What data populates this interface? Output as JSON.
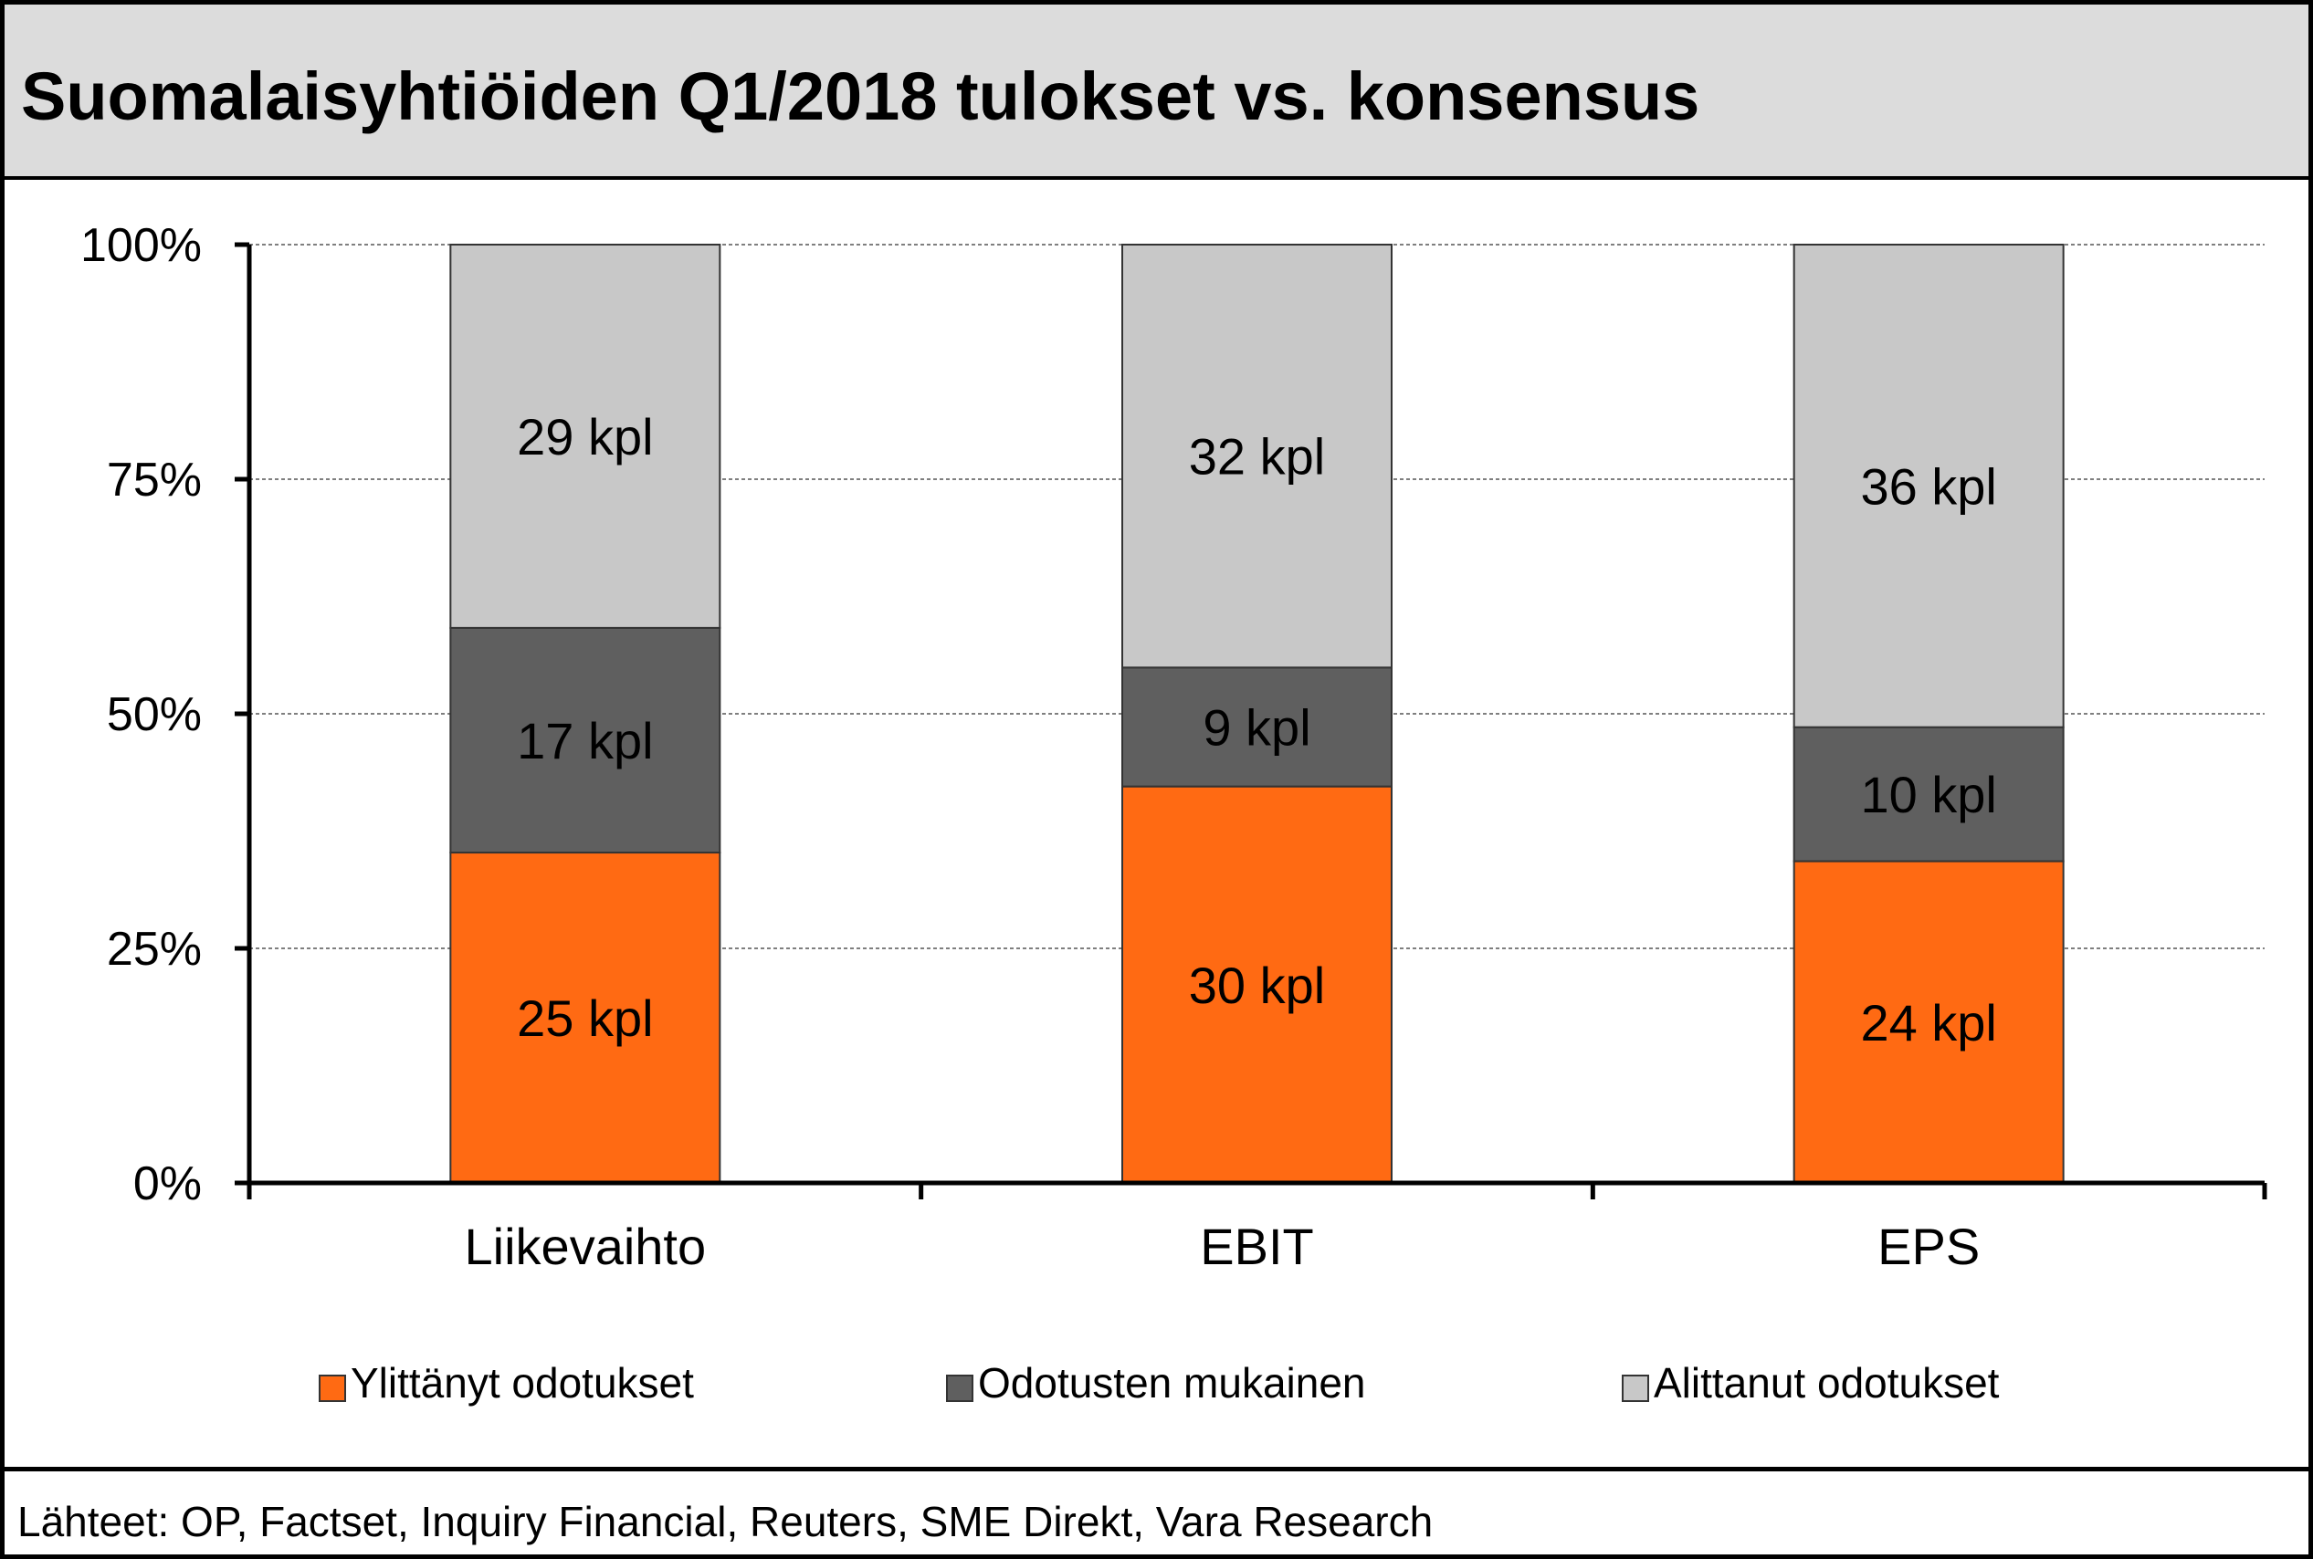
{
  "title": "Suomalaisyhtiöiden Q1/2018 tulokset vs. konsensus",
  "source": "Lähteet: OP, Factset, Inquiry Financial, Reuters, SME Direkt, Vara Research",
  "chart_data": {
    "type": "bar",
    "stacked": true,
    "percent_stacked": true,
    "categories": [
      "Liikevaihto",
      "EBIT",
      "EPS"
    ],
    "series": [
      {
        "name": "Ylittänyt odotukset",
        "values": [
          25,
          30,
          24
        ],
        "labels": [
          "25 kpl",
          "30 kpl",
          "24 kpl"
        ],
        "color": "#ff6a13"
      },
      {
        "name": "Odotusten mukainen",
        "values": [
          17,
          9,
          10
        ],
        "labels": [
          "17 kpl",
          "9 kpl",
          "10 kpl"
        ],
        "color": "#5f5f5f"
      },
      {
        "name": "Alittanut odotukset",
        "values": [
          29,
          32,
          36
        ],
        "labels": [
          "29 kpl",
          "32 kpl",
          "36 kpl"
        ],
        "color": "#c8c8c8"
      }
    ],
    "y_ticks": [
      "0%",
      "25%",
      "50%",
      "75%",
      "100%"
    ],
    "ylim": [
      0,
      100
    ],
    "grid": true,
    "legend_position": "bottom"
  }
}
